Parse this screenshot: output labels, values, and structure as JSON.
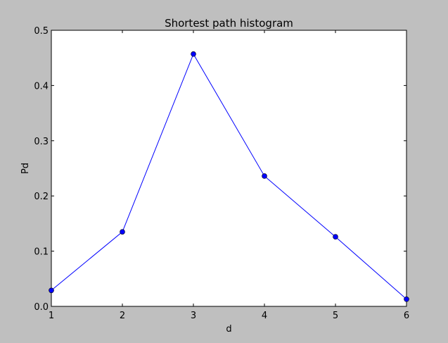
{
  "figure": {
    "background": "#bfbfbf"
  },
  "chart_data": {
    "type": "line",
    "title": "Shortest path histogram",
    "xlabel": "d",
    "ylabel": "Pd",
    "x": [
      1,
      2,
      3,
      4,
      5,
      6
    ],
    "series": [
      {
        "values": [
          0.029,
          0.135,
          0.457,
          0.236,
          0.126,
          0.013
        ],
        "color": "#0000ff",
        "marker": "circle"
      }
    ],
    "xlim": [
      1,
      6
    ],
    "ylim": [
      0,
      0.5
    ],
    "xticks": [
      "1",
      "2",
      "3",
      "4",
      "5",
      "6"
    ],
    "yticks": [
      "0.0",
      "0.1",
      "0.2",
      "0.3",
      "0.4",
      "0.5"
    ],
    "grid": false,
    "legend": "none"
  }
}
